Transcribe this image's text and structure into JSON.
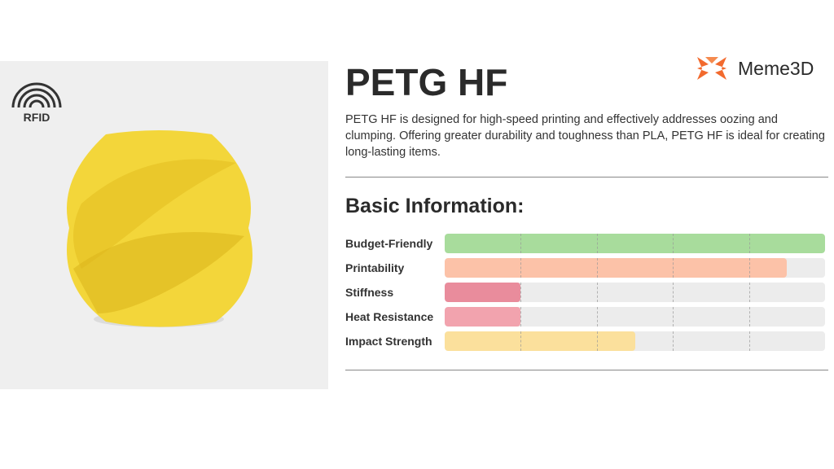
{
  "product": {
    "title": "PETG HF",
    "description": "PETG HF is designed for high-speed printing and effectively addresses oozing and clumping. Offering greater durability and toughness than PLA, PETG HF is ideal for creating long-lasting items.",
    "badge": "RFID",
    "image_color": "#f3d63a"
  },
  "brand": {
    "name": "Meme3D",
    "color": "#f26a2e"
  },
  "section_title": "Basic Information:",
  "ratings": [
    {
      "label": "Budget-Friendly",
      "value": 1.0,
      "color": "#a8dc9c"
    },
    {
      "label": "Printability",
      "value": 0.9,
      "color": "#fcc2a8"
    },
    {
      "label": "Stiffness",
      "value": 0.2,
      "color": "#e98c9c"
    },
    {
      "label": "Heat Resistance",
      "value": 0.2,
      "color": "#f2a3ae"
    },
    {
      "label": "Impact Strength",
      "value": 0.5,
      "color": "#fbe09c"
    }
  ]
}
